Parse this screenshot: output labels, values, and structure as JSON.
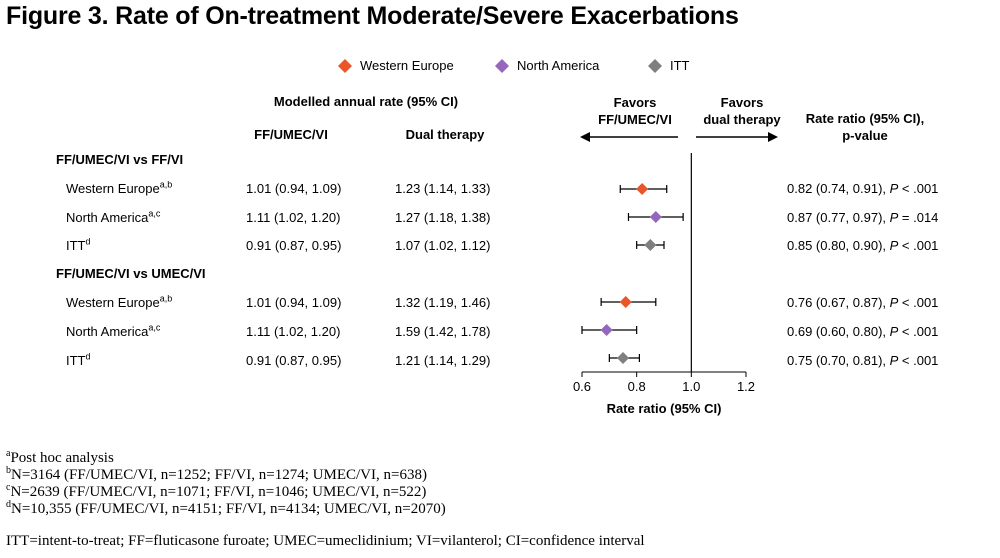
{
  "title": "Figure 3. Rate of On-treatment Moderate/Severe Exacerbations",
  "legend": [
    {
      "label": "Western Europe",
      "color": "#e8562a",
      "marker": "diamond"
    },
    {
      "label": "North America",
      "color": "#9467bd",
      "marker": "diamond"
    },
    {
      "label": "ITT",
      "color": "#7f7f7f",
      "marker": "diamond"
    }
  ],
  "headers": {
    "modelled": "Modelled annual rate (95% CI)",
    "col1": "FF/UMEC/VI",
    "col2": "Dual therapy",
    "favors_left_1": "Favors",
    "favors_left_2": "FF/UMEC/VI",
    "favors_right_1": "Favors",
    "favors_right_2": "dual therapy",
    "ratio_1": "Rate ratio (95% CI),",
    "ratio_2": "p-value"
  },
  "groups": [
    {
      "label": "FF/UMEC/VI vs FF/VI",
      "rows": [
        {
          "name": "Western Europe",
          "sup": "a,b",
          "triple": "1.01 (0.94, 1.09)",
          "dual": "1.23 (1.14, 1.33)",
          "ratio_text": "0.82 (0.74, 0.91), ",
          "p_label": "P",
          "p_text": " < .001"
        },
        {
          "name": "North America",
          "sup": "a,c",
          "triple": "1.11 (1.02, 1.20)",
          "dual": "1.27 (1.18, 1.38)",
          "ratio_text": "0.87 (0.77, 0.97), ",
          "p_label": "P",
          "p_text": " = .014"
        },
        {
          "name": "ITT",
          "sup": "d",
          "triple": "0.91 (0.87, 0.95)",
          "dual": "1.07 (1.02, 1.12)",
          "ratio_text": "0.85 (0.80, 0.90), ",
          "p_label": "P",
          "p_text": " < .001"
        }
      ]
    },
    {
      "label": "FF/UMEC/VI vs UMEC/VI",
      "rows": [
        {
          "name": "Western Europe",
          "sup": "a,b",
          "triple": "1.01 (0.94, 1.09)",
          "dual": "1.32 (1.19, 1.46)",
          "ratio_text": "0.76 (0.67, 0.87), ",
          "p_label": "P",
          "p_text": " < .001"
        },
        {
          "name": "North America",
          "sup": "a,c",
          "triple": "1.11 (1.02, 1.20)",
          "dual": "1.59 (1.42, 1.78)",
          "ratio_text": "0.69 (0.60, 0.80), ",
          "p_label": "P",
          "p_text": " < .001"
        },
        {
          "name": "ITT",
          "sup": "d",
          "triple": "0.91 (0.87, 0.95)",
          "dual": "1.21 (1.14, 1.29)",
          "ratio_text": "0.75 (0.70, 0.81), ",
          "p_label": "P",
          "p_text": " < .001"
        }
      ]
    }
  ],
  "chart_data": {
    "type": "forest",
    "xlabel": "Rate ratio (95% CI)",
    "xlim": [
      0.6,
      1.2
    ],
    "xticks": [
      "0.6",
      "0.8",
      "1.0",
      "1.2"
    ],
    "reference_line": 1.0,
    "series": [
      {
        "group": "FF/UMEC/VI vs FF/VI",
        "name": "Western Europe",
        "estimate": 0.82,
        "lower": 0.74,
        "upper": 0.91,
        "color": "#e8562a"
      },
      {
        "group": "FF/UMEC/VI vs FF/VI",
        "name": "North America",
        "estimate": 0.87,
        "lower": 0.77,
        "upper": 0.97,
        "color": "#9467bd"
      },
      {
        "group": "FF/UMEC/VI vs FF/VI",
        "name": "ITT",
        "estimate": 0.85,
        "lower": 0.8,
        "upper": 0.9,
        "color": "#7f7f7f"
      },
      {
        "group": "FF/UMEC/VI vs UMEC/VI",
        "name": "Western Europe",
        "estimate": 0.76,
        "lower": 0.67,
        "upper": 0.87,
        "color": "#e8562a"
      },
      {
        "group": "FF/UMEC/VI vs UMEC/VI",
        "name": "North America",
        "estimate": 0.69,
        "lower": 0.6,
        "upper": 0.8,
        "color": "#9467bd"
      },
      {
        "group": "FF/UMEC/VI vs UMEC/VI",
        "name": "ITT",
        "estimate": 0.75,
        "lower": 0.7,
        "upper": 0.81,
        "color": "#7f7f7f"
      }
    ]
  },
  "footnotes": [
    {
      "sup": "a",
      "text": "Post hoc analysis"
    },
    {
      "sup": "b",
      "text": "N=3164 (FF/UMEC/VI, n=1252; FF/VI, n=1274; UMEC/VI, n=638)"
    },
    {
      "sup": "c",
      "text": "N=2639 (FF/UMEC/VI, n=1071; FF/VI, n=1046; UMEC/VI, n=522)"
    },
    {
      "sup": "d",
      "text": "N=10,355 (FF/UMEC/VI, n=4151; FF/VI, n=4134; UMEC/VI, n=2070)"
    }
  ],
  "abbreviations": "ITT=intent-to-treat; FF=fluticasone furoate; UMEC=umeclidinium; VI=vilanterol; CI=confidence interval"
}
